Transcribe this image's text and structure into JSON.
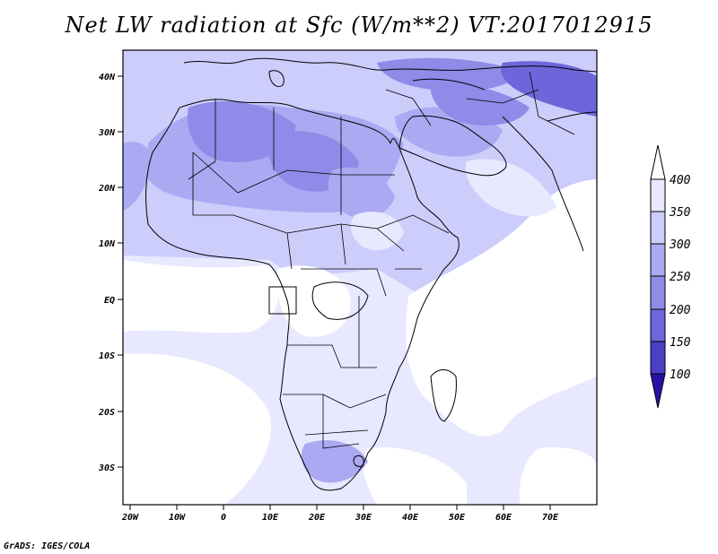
{
  "title": "Net LW radiation at Sfc (W/m**2) VT:2017012915",
  "credit": "GrADS: IGES/COLA",
  "map": {
    "lon_labels": [
      "20W",
      "10W",
      "0",
      "10E",
      "20E",
      "30E",
      "40E",
      "50E",
      "60E",
      "70E"
    ],
    "lat_labels": [
      "40N",
      "30N",
      "20N",
      "10N",
      "EQ",
      "10S",
      "20S",
      "30S"
    ]
  },
  "colorbar": {
    "labels": [
      "400",
      "350",
      "300",
      "250",
      "200",
      "150",
      "100"
    ],
    "colors": [
      "#ffffff",
      "#e8e8ff",
      "#cccdfb",
      "#aba9f2",
      "#8f8be8",
      "#6d66da",
      "#4a3fc5",
      "#2a10a8"
    ]
  }
}
